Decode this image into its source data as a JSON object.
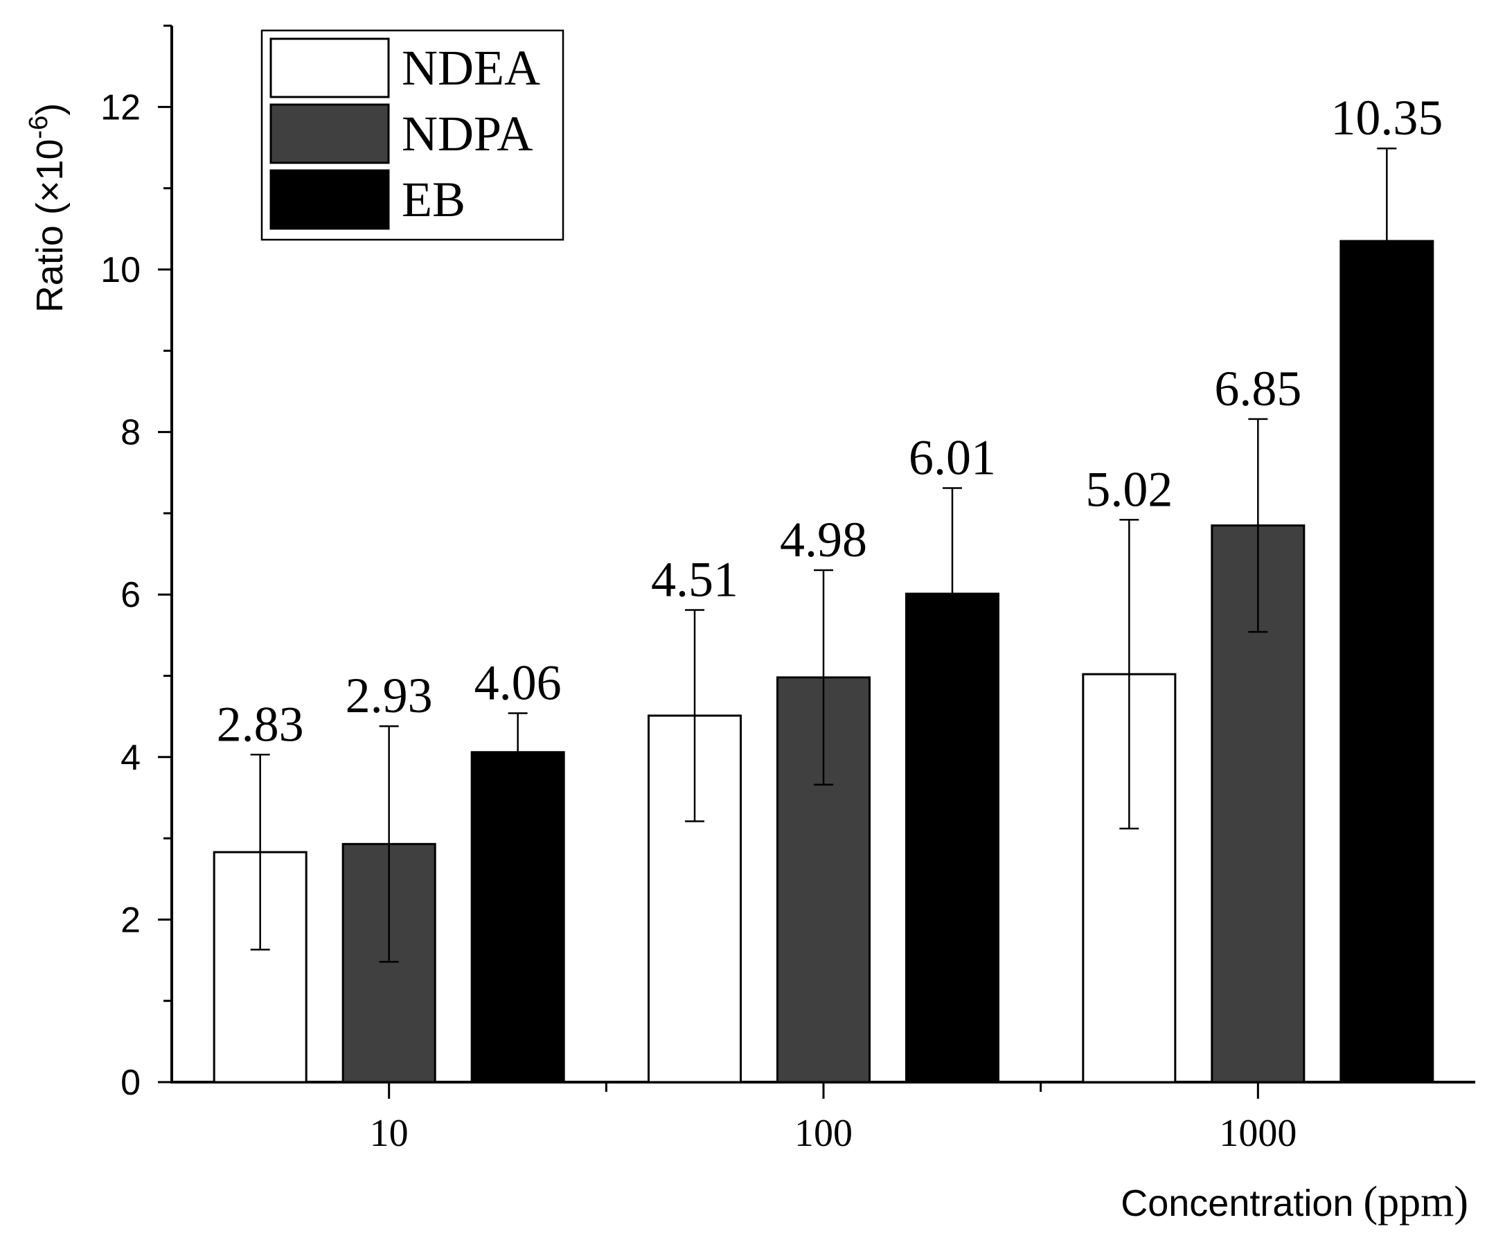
{
  "chart_data": {
    "type": "bar",
    "title": "",
    "xlabel": {
      "main": "Concentration",
      "unit": "(ppm)"
    },
    "ylabel": {
      "main": "Ratio (×10",
      "superscript": "-6",
      "close": ")"
    },
    "ylim": [
      0,
      13
    ],
    "yticks": [
      0,
      2,
      4,
      6,
      8,
      10,
      12
    ],
    "y_minor_step": 1,
    "categories": [
      "10",
      "100",
      "1000"
    ],
    "legend_position": "top-left",
    "series": [
      {
        "name": "NDEA",
        "color": "#ffffff",
        "values": [
          2.83,
          4.51,
          5.02
        ],
        "errors": [
          1.2,
          1.3,
          1.9
        ],
        "labels": [
          "2.83",
          "4.51",
          "5.02"
        ]
      },
      {
        "name": "NDPA",
        "color": "#404040",
        "values": [
          2.93,
          4.98,
          6.85
        ],
        "errors": [
          1.45,
          1.32,
          1.31
        ],
        "labels": [
          "2.93",
          "4.98",
          "6.85"
        ]
      },
      {
        "name": "EB",
        "color": "#000000",
        "values": [
          4.06,
          6.01,
          10.35
        ],
        "errors": [
          0.48,
          1.3,
          1.14
        ],
        "labels": [
          "4.06",
          "6.01",
          "10.35"
        ]
      }
    ],
    "grid": false
  }
}
